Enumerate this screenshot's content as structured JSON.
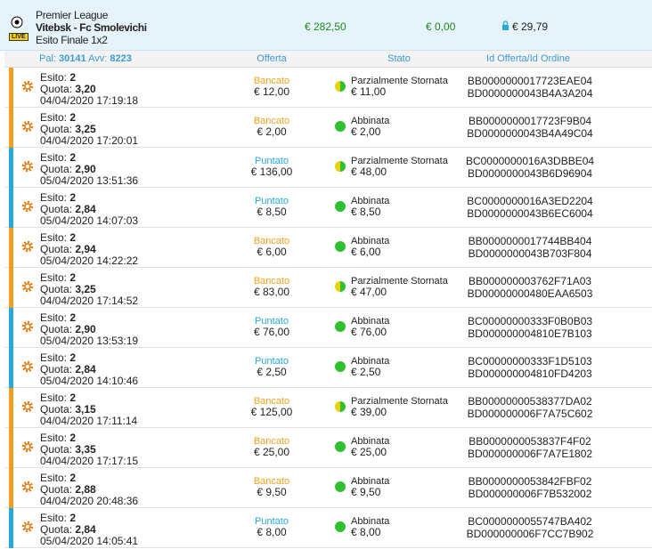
{
  "header": {
    "league": "Premier League",
    "match": "Vitebsk - Fc Smolevichi",
    "market": "Esito Finale 1x2",
    "live": "LIVE",
    "total1": "€ 282,50",
    "total2": "€ 0,00",
    "total3": "€ 29,79"
  },
  "columns": {
    "pal_label": "Pal:",
    "pal": "30141",
    "avv_label": "Avv:",
    "avv": "8223",
    "offer": "Offerta",
    "status": "Stato",
    "ids": "Id Offerta/Id Ordine"
  },
  "labels": {
    "esito": "Esito:",
    "quota": "Quota:"
  },
  "rows": [
    {
      "esito": "2",
      "quota": "3,20",
      "date": "04/04/2020 17:19:18",
      "type": "Bancato",
      "offer": "€ 12,00",
      "status": "Parzialmente Stornata",
      "matched": "€ 11,00",
      "id1": "BB0000000017723EAE04",
      "id2": "BD0000000043B4A3A204",
      "accent": "#f0a020",
      "dot": [
        "#e6d200",
        "#2fc02f"
      ]
    },
    {
      "esito": "2",
      "quota": "3,25",
      "date": "04/04/2020 17:20:01",
      "type": "Bancato",
      "offer": "€ 2,00",
      "status": "Abbinata",
      "matched": "€ 2,00",
      "id1": "BB0000000017723F9B04",
      "id2": "BD0000000043B4A49C04",
      "accent": "#f0a020",
      "dot": [
        "#2fc02f",
        "#2fc02f"
      ]
    },
    {
      "esito": "2",
      "quota": "2,90",
      "date": "05/04/2020 13:51:36",
      "type": "Puntato",
      "offer": "€ 136,00",
      "status": "Parzialmente Stornata",
      "matched": "€ 48,00",
      "id1": "BC0000000016A3DBBE04",
      "id2": "BD0000000043B6D96904",
      "accent": "#27a9d9",
      "dot": [
        "#e6d200",
        "#2fc02f"
      ]
    },
    {
      "esito": "2",
      "quota": "2,84",
      "date": "05/04/2020 14:07:03",
      "type": "Puntato",
      "offer": "€ 8,50",
      "status": "Abbinata",
      "matched": "€ 8,50",
      "id1": "BC0000000016A3ED2204",
      "id2": "BD0000000043B6EC6004",
      "accent": "#27a9d9",
      "dot": [
        "#2fc02f",
        "#2fc02f"
      ]
    },
    {
      "esito": "2",
      "quota": "2,94",
      "date": "05/04/2020 14:22:22",
      "type": "Bancato",
      "offer": "€ 6,00",
      "status": "Abbinata",
      "matched": "€ 6,00",
      "id1": "BB0000000017744BB404",
      "id2": "BD0000000043B703F804",
      "accent": "#f0a020",
      "dot": [
        "#2fc02f",
        "#2fc02f"
      ]
    },
    {
      "esito": "2",
      "quota": "3,25",
      "date": "04/04/2020 17:14:52",
      "type": "Bancato",
      "offer": "€ 83,00",
      "status": "Parzialmente Stornata",
      "matched": "€ 47,00",
      "id1": "BB000000003762F71A03",
      "id2": "BD00000000480EAA6503",
      "accent": "#f0a020",
      "dot": [
        "#e6d200",
        "#2fc02f"
      ]
    },
    {
      "esito": "2",
      "quota": "2,90",
      "date": "05/04/2020 13:53:19",
      "type": "Puntato",
      "offer": "€ 76,00",
      "status": "Abbinata",
      "matched": "€ 76,00",
      "id1": "BC00000000333F0B0B03",
      "id2": "BD000000004810E7B103",
      "accent": "#27a9d9",
      "dot": [
        "#2fc02f",
        "#2fc02f"
      ]
    },
    {
      "esito": "2",
      "quota": "2,84",
      "date": "05/04/2020 14:10:46",
      "type": "Puntato",
      "offer": "€ 2,50",
      "status": "Abbinata",
      "matched": "€ 2,50",
      "id1": "BC00000000333F1D5103",
      "id2": "BD000000004810FD4203",
      "accent": "#27a9d9",
      "dot": [
        "#2fc02f",
        "#2fc02f"
      ]
    },
    {
      "esito": "2",
      "quota": "3,15",
      "date": "04/04/2020 17:11:14",
      "type": "Bancato",
      "offer": "€ 125,00",
      "status": "Parzialmente Stornata",
      "matched": "€ 39,00",
      "id1": "BB00000000538377DA02",
      "id2": "BD000000006F7A75C602",
      "accent": "#f0a020",
      "dot": [
        "#e6d200",
        "#2fc02f"
      ]
    },
    {
      "esito": "2",
      "quota": "3,35",
      "date": "04/04/2020 17:17:15",
      "type": "Bancato",
      "offer": "€ 25,00",
      "status": "Abbinata",
      "matched": "€ 25,00",
      "id1": "BB0000000053837F4F02",
      "id2": "BD000000006F7A7E1802",
      "accent": "#f0a020",
      "dot": [
        "#2fc02f",
        "#2fc02f"
      ]
    },
    {
      "esito": "2",
      "quota": "2,88",
      "date": "04/04/2020 20:48:36",
      "type": "Bancato",
      "offer": "€ 9,50",
      "status": "Abbinata",
      "matched": "€ 9,50",
      "id1": "BB0000000053842FBF02",
      "id2": "BD000000006F7B532002",
      "accent": "#f0a020",
      "dot": [
        "#2fc02f",
        "#2fc02f"
      ]
    },
    {
      "esito": "2",
      "quota": "2,84",
      "date": "05/04/2020 14:05:41",
      "type": "Puntato",
      "offer": "€ 8,00",
      "status": "Abbinata",
      "matched": "€ 8,00",
      "id1": "BC0000000055747BA402",
      "id2": "BD000000006F7CC7B902",
      "accent": "#27a9d9",
      "dot": [
        "#2fc02f",
        "#2fc02f"
      ]
    }
  ]
}
